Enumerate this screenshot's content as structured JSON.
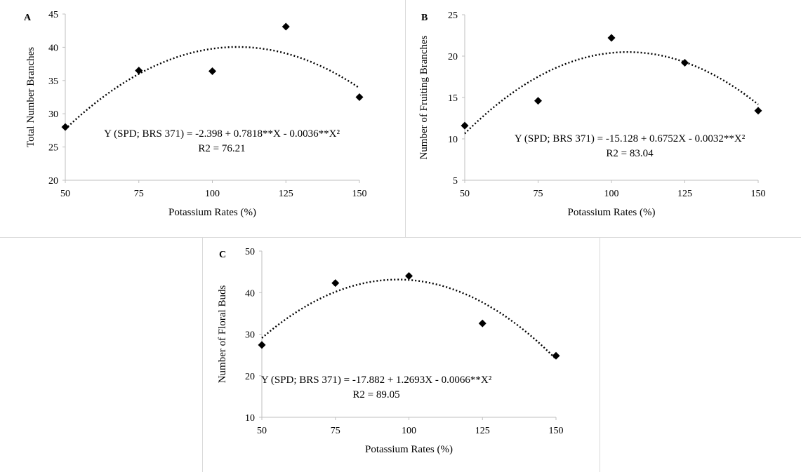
{
  "chart_data": [
    {
      "type": "scatter",
      "panel_label": "A",
      "xlabel": "Potassium Rates (%)",
      "ylabel": "Total Number Branches",
      "xlim": [
        50,
        150
      ],
      "ylim": [
        20,
        45
      ],
      "xticks": [
        50,
        75,
        100,
        125,
        150
      ],
      "yticks": [
        20,
        25,
        30,
        35,
        40,
        45
      ],
      "points": {
        "x": [
          50,
          75,
          100,
          125,
          150
        ],
        "y": [
          28.0,
          36.5,
          36.4,
          43.1,
          32.5
        ]
      },
      "trend": {
        "type": "quadratic",
        "coef": [
          -2.398,
          0.7818,
          -0.0036
        ]
      },
      "equation": "Y (SPD; BRS 371) = -2.398 + 0.7818**X - 0.0036**X²",
      "r2": "R2 = 76.21",
      "grid": false
    },
    {
      "type": "scatter",
      "panel_label": "B",
      "xlabel": "Potassium Rates (%)",
      "ylabel": "Number of Fruiting Branches",
      "xlim": [
        50,
        150
      ],
      "ylim": [
        5,
        25
      ],
      "xticks": [
        50,
        75,
        100,
        125,
        150
      ],
      "yticks": [
        5,
        10,
        15,
        20,
        25
      ],
      "points": {
        "x": [
          50,
          75,
          100,
          125,
          150
        ],
        "y": [
          11.6,
          14.6,
          22.2,
          19.2,
          13.4
        ]
      },
      "trend": {
        "type": "quadratic",
        "coef": [
          -15.128,
          0.6752,
          -0.0032
        ]
      },
      "equation": "Y (SPD; BRS 371) = -15.128 + 0.6752X - 0.0032**X²",
      "r2": "R2 = 83.04",
      "grid": false
    },
    {
      "type": "scatter",
      "panel_label": "C",
      "xlabel": "Potassium Rates (%)",
      "ylabel": "Number of Floral Buds",
      "xlim": [
        50,
        150
      ],
      "ylim": [
        10,
        50
      ],
      "xticks": [
        50,
        75,
        100,
        125,
        150
      ],
      "yticks": [
        10,
        20,
        30,
        40,
        50
      ],
      "points": {
        "x": [
          50,
          75,
          100,
          125,
          150
        ],
        "y": [
          27.4,
          42.3,
          44.0,
          32.6,
          24.8
        ]
      },
      "trend": {
        "type": "quadratic",
        "coef": [
          -17.882,
          1.2693,
          -0.0066
        ]
      },
      "equation": "Y (SPD; BRS 371) = -17.882 + 1.2693X - 0.0066**X²",
      "r2": "R2 = 89.05",
      "grid": false
    }
  ]
}
